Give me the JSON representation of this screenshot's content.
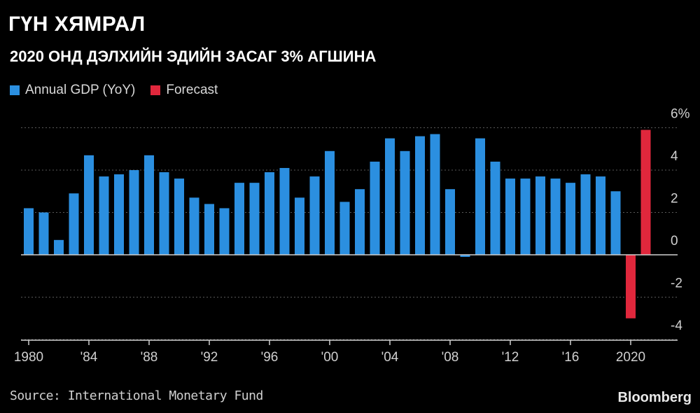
{
  "header": {
    "title": "ГҮН ХЯМРАЛ",
    "subtitle": "2020 ОНД ДЭЛХИЙН ЭДИЙН ЗАСАГ 3% АГШИНА"
  },
  "legend": {
    "items": [
      {
        "label": "Annual GDP (YoY)",
        "color": "#2b8fe0"
      },
      {
        "label": "Forecast",
        "color": "#e0273c"
      }
    ]
  },
  "footer": {
    "source": "Source: International Monetary Fund",
    "brand": "Bloomberg"
  },
  "chart_data": {
    "type": "bar",
    "xlabel": "",
    "ylabel": "",
    "ylim": [
      -4,
      6
    ],
    "grid": true,
    "y_ticks": [
      "-4",
      "-2",
      "0",
      "2",
      "4",
      "6%"
    ],
    "x_ticks": [
      {
        "year": 1980,
        "label": "1980"
      },
      {
        "year": 1984,
        "label": "'84"
      },
      {
        "year": 1988,
        "label": "'88"
      },
      {
        "year": 1992,
        "label": "'92"
      },
      {
        "year": 1996,
        "label": "'96"
      },
      {
        "year": 2000,
        "label": "'00"
      },
      {
        "year": 2004,
        "label": "'04"
      },
      {
        "year": 2008,
        "label": "'08"
      },
      {
        "year": 2012,
        "label": "'12"
      },
      {
        "year": 2016,
        "label": "'16"
      },
      {
        "year": 2020,
        "label": "2020"
      }
    ],
    "series": [
      {
        "name": "Annual GDP (YoY)",
        "color": "#2b8fe0",
        "x": [
          1980,
          1981,
          1982,
          1983,
          1984,
          1985,
          1986,
          1987,
          1988,
          1989,
          1990,
          1991,
          1992,
          1993,
          1994,
          1995,
          1996,
          1997,
          1998,
          1999,
          2000,
          2001,
          2002,
          2003,
          2004,
          2005,
          2006,
          2007,
          2008,
          2009,
          2010,
          2011,
          2012,
          2013,
          2014,
          2015,
          2016,
          2017,
          2018,
          2019
        ],
        "values": [
          2.2,
          2.0,
          0.7,
          2.9,
          4.7,
          3.7,
          3.8,
          4.0,
          4.7,
          3.9,
          3.6,
          2.7,
          2.4,
          2.2,
          3.4,
          3.4,
          3.9,
          4.1,
          2.7,
          3.7,
          4.9,
          2.5,
          3.1,
          4.4,
          5.5,
          4.9,
          5.6,
          5.7,
          3.1,
          -0.1,
          5.5,
          4.4,
          3.6,
          3.6,
          3.7,
          3.6,
          3.4,
          3.8,
          3.7,
          3.0
        ]
      },
      {
        "name": "Forecast",
        "color": "#e0273c",
        "x": [
          2020,
          2021
        ],
        "values": [
          -3.0,
          5.9
        ]
      }
    ]
  }
}
